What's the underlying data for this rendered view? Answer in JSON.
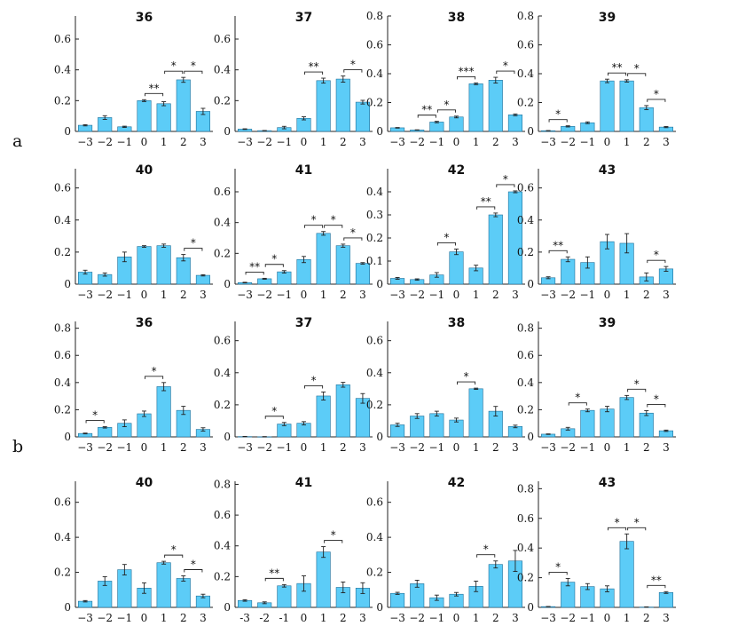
{
  "row_labels": [
    "a",
    "b"
  ],
  "chart_data": [
    {
      "type": "bar",
      "title": "36",
      "categories": [
        "−3",
        "−2",
        "−1",
        "0",
        "1",
        "2",
        "3"
      ],
      "ylim": [
        0,
        0.75
      ],
      "yticks": [
        0,
        0.2,
        0.4,
        0.6
      ],
      "ytick_labels": [
        "0",
        "0.2",
        "0.4",
        "0.6"
      ],
      "values": [
        0.04,
        0.09,
        0.03,
        0.2,
        0.18,
        0.335,
        0.13
      ],
      "errors": [
        0.004,
        0.012,
        0.004,
        0.006,
        0.013,
        0.016,
        0.02
      ],
      "significance": [
        {
          "from": 3,
          "to": 4,
          "label": "**"
        },
        {
          "from": 4,
          "to": 5,
          "label": "*"
        },
        {
          "from": 5,
          "to": 6,
          "label": "*"
        }
      ]
    },
    {
      "type": "bar",
      "title": "37",
      "categories": [
        "−3",
        "−2",
        "−1",
        "0",
        "1",
        "2",
        "3"
      ],
      "ylim": [
        0,
        0.75
      ],
      "yticks": [
        0,
        0.2,
        0.4,
        0.6
      ],
      "ytick_labels": [
        "0",
        "0.2",
        "0.4",
        "0.6"
      ],
      "values": [
        0.015,
        0.005,
        0.025,
        0.085,
        0.33,
        0.34,
        0.19
      ],
      "errors": [
        0.002,
        0.001,
        0.008,
        0.01,
        0.016,
        0.02,
        0.012
      ],
      "significance": [
        {
          "from": 3,
          "to": 4,
          "label": "**"
        },
        {
          "from": 5,
          "to": 6,
          "label": "*"
        }
      ]
    },
    {
      "type": "bar",
      "title": "38",
      "categories": [
        "−3",
        "−2",
        "−1",
        "0",
        "1",
        "2",
        "3"
      ],
      "ylim": [
        0,
        0.8
      ],
      "yticks": [
        0,
        0.2,
        0.4,
        0.6,
        0.8
      ],
      "ytick_labels": [
        "0",
        "0.2",
        "0.4",
        "0.6",
        "0.8"
      ],
      "values": [
        0.025,
        0.01,
        0.065,
        0.1,
        0.33,
        0.355,
        0.115
      ],
      "errors": [
        0.002,
        0.001,
        0.005,
        0.006,
        0.006,
        0.02,
        0.006
      ],
      "significance": [
        {
          "from": 1,
          "to": 2,
          "label": "**"
        },
        {
          "from": 2,
          "to": 3,
          "label": "*"
        },
        {
          "from": 3,
          "to": 4,
          "label": "***"
        },
        {
          "from": 5,
          "to": 6,
          "label": "*"
        }
      ]
    },
    {
      "type": "bar",
      "title": "39",
      "categories": [
        "−3",
        "−2",
        "−1",
        "0",
        "1",
        "2",
        "3"
      ],
      "ylim": [
        0,
        0.8
      ],
      "yticks": [
        0,
        0.2,
        0.4,
        0.6,
        0.8
      ],
      "ytick_labels": [
        "0",
        "0.2",
        "0.4",
        "0.6",
        "0.8"
      ],
      "values": [
        0.005,
        0.035,
        0.06,
        0.35,
        0.35,
        0.165,
        0.03
      ],
      "errors": [
        0.001,
        0.004,
        0.006,
        0.012,
        0.008,
        0.014,
        0.004
      ],
      "significance": [
        {
          "from": 0,
          "to": 1,
          "label": "*"
        },
        {
          "from": 3,
          "to": 4,
          "label": "**"
        },
        {
          "from": 4,
          "to": 5,
          "label": "*"
        },
        {
          "from": 5,
          "to": 6,
          "label": "*"
        }
      ]
    },
    {
      "type": "bar",
      "title": "40",
      "categories": [
        "−3",
        "−2",
        "−1",
        "0",
        "1",
        "2",
        "3"
      ],
      "ylim": [
        0,
        0.72
      ],
      "yticks": [
        0,
        0.2,
        0.4,
        0.6
      ],
      "ytick_labels": [
        "0",
        "0.2",
        "0.4",
        "0.6"
      ],
      "values": [
        0.075,
        0.06,
        0.17,
        0.235,
        0.24,
        0.165,
        0.055
      ],
      "errors": [
        0.012,
        0.01,
        0.03,
        0.005,
        0.01,
        0.02,
        0.004
      ],
      "significance": [
        {
          "from": 5,
          "to": 6,
          "label": "*"
        }
      ]
    },
    {
      "type": "bar",
      "title": "41",
      "categories": [
        "−3",
        "−2",
        "−1",
        "0",
        "1",
        "2",
        "3"
      ],
      "ylim": [
        0,
        0.75
      ],
      "yticks": [
        0,
        0.2,
        0.4,
        0.6
      ],
      "ytick_labels": [
        "0",
        "0.2",
        "0.4",
        "0.6"
      ],
      "values": [
        0.01,
        0.035,
        0.08,
        0.16,
        0.33,
        0.25,
        0.135
      ],
      "errors": [
        0.002,
        0.003,
        0.008,
        0.02,
        0.012,
        0.01,
        0.005
      ],
      "significance": [
        {
          "from": 0,
          "to": 1,
          "label": "**"
        },
        {
          "from": 1,
          "to": 2,
          "label": "*"
        },
        {
          "from": 3,
          "to": 4,
          "label": "*"
        },
        {
          "from": 4,
          "to": 5,
          "label": "*"
        },
        {
          "from": 5,
          "to": 6,
          "label": "*"
        }
      ]
    },
    {
      "type": "bar",
      "title": "42",
      "categories": [
        "−3",
        "−2",
        "−1",
        "0",
        "1",
        "2",
        "3"
      ],
      "ylim": [
        0,
        0.5
      ],
      "yticks": [
        0,
        0.1,
        0.2,
        0.3,
        0.4
      ],
      "ytick_labels": [
        "0",
        "0.1",
        "0.2",
        "0.3",
        "0.4"
      ],
      "values": [
        0.025,
        0.02,
        0.04,
        0.14,
        0.07,
        0.3,
        0.4
      ],
      "errors": [
        0.004,
        0.003,
        0.01,
        0.012,
        0.012,
        0.008,
        0.004
      ],
      "significance": [
        {
          "from": 2,
          "to": 3,
          "label": "*"
        },
        {
          "from": 4,
          "to": 5,
          "label": "**"
        },
        {
          "from": 5,
          "to": 6,
          "label": "*"
        }
      ]
    },
    {
      "type": "bar",
      "title": "43",
      "categories": [
        "−3",
        "−2",
        "−1",
        "0",
        "1",
        "2",
        "3"
      ],
      "ylim": [
        0,
        0.72
      ],
      "yticks": [
        0,
        0.2,
        0.4,
        0.6
      ],
      "ytick_labels": [
        "0",
        "0.2",
        "0.4",
        "0.6"
      ],
      "values": [
        0.04,
        0.155,
        0.135,
        0.265,
        0.255,
        0.045,
        0.095
      ],
      "errors": [
        0.006,
        0.015,
        0.035,
        0.045,
        0.06,
        0.025,
        0.015
      ],
      "significance": [
        {
          "from": 0,
          "to": 1,
          "label": "**"
        },
        {
          "from": 5,
          "to": 6,
          "label": "*"
        }
      ]
    },
    {
      "type": "bar",
      "title": "36",
      "categories": [
        "−3",
        "−2",
        "−1",
        "0",
        "1",
        "2",
        "3"
      ],
      "ylim": [
        0,
        0.85
      ],
      "yticks": [
        0,
        0.2,
        0.4,
        0.6,
        0.8
      ],
      "ytick_labels": [
        "0",
        "0.2",
        "0.4",
        "0.6",
        "0.8"
      ],
      "values": [
        0.025,
        0.07,
        0.1,
        0.17,
        0.37,
        0.195,
        0.055
      ],
      "errors": [
        0.003,
        0.005,
        0.025,
        0.02,
        0.03,
        0.03,
        0.012
      ],
      "significance": [
        {
          "from": 0,
          "to": 1,
          "label": "*"
        },
        {
          "from": 3,
          "to": 4,
          "label": "*"
        }
      ]
    },
    {
      "type": "bar",
      "title": "37",
      "categories": [
        "−3",
        "−2",
        "−1",
        "0",
        "1",
        "2",
        "3"
      ],
      "ylim": [
        0,
        0.72
      ],
      "yticks": [
        0,
        0.2,
        0.4,
        0.6
      ],
      "ytick_labels": [
        "0",
        "0.2",
        "0.4",
        "0.6"
      ],
      "values": [
        0.002,
        0.001,
        0.08,
        0.085,
        0.255,
        0.325,
        0.24
      ],
      "errors": [
        0.001,
        0.001,
        0.01,
        0.01,
        0.025,
        0.015,
        0.03
      ],
      "significance": [
        {
          "from": 1,
          "to": 2,
          "label": "*"
        },
        {
          "from": 3,
          "to": 4,
          "label": "*"
        }
      ]
    },
    {
      "type": "bar",
      "title": "38",
      "categories": [
        "−3",
        "−2",
        "−1",
        "0",
        "1",
        "2",
        "3"
      ],
      "ylim": [
        0,
        0.72
      ],
      "yticks": [
        0,
        0.2,
        0.4,
        0.6
      ],
      "ytick_labels": [
        "0",
        "0.2",
        "0.4",
        "0.6"
      ],
      "values": [
        0.075,
        0.13,
        0.145,
        0.105,
        0.3,
        0.16,
        0.065
      ],
      "errors": [
        0.01,
        0.015,
        0.015,
        0.012,
        0.004,
        0.03,
        0.008
      ],
      "significance": [
        {
          "from": 3,
          "to": 4,
          "label": "*"
        }
      ]
    },
    {
      "type": "bar",
      "title": "39",
      "categories": [
        "−3",
        "−2",
        "−1",
        "0",
        "1",
        "2",
        "3"
      ],
      "ylim": [
        0,
        0.85
      ],
      "yticks": [
        0,
        0.2,
        0.4,
        0.6,
        0.8
      ],
      "ytick_labels": [
        "0",
        "0.2",
        "0.4",
        "0.6",
        "0.8"
      ],
      "values": [
        0.02,
        0.06,
        0.195,
        0.205,
        0.29,
        0.175,
        0.045
      ],
      "errors": [
        0.002,
        0.01,
        0.01,
        0.02,
        0.015,
        0.018,
        0.005
      ],
      "significance": [
        {
          "from": 1,
          "to": 2,
          "label": "*"
        },
        {
          "from": 4,
          "to": 5,
          "label": "*"
        },
        {
          "from": 5,
          "to": 6,
          "label": "*"
        }
      ]
    },
    {
      "type": "bar",
      "title": "40",
      "categories": [
        "−3",
        "−2",
        "−1",
        "0",
        "1",
        "2",
        "3"
      ],
      "ylim": [
        0,
        0.72
      ],
      "yticks": [
        0,
        0.2,
        0.4,
        0.6
      ],
      "ytick_labels": [
        "0",
        "0.2",
        "0.4",
        "0.6"
      ],
      "values": [
        0.035,
        0.15,
        0.215,
        0.11,
        0.255,
        0.165,
        0.065
      ],
      "errors": [
        0.004,
        0.025,
        0.03,
        0.03,
        0.008,
        0.015,
        0.01
      ],
      "significance": [
        {
          "from": 4,
          "to": 5,
          "label": "*"
        },
        {
          "from": 5,
          "to": 6,
          "label": "*"
        }
      ]
    },
    {
      "type": "bar",
      "title": "41",
      "categories": [
        "-3",
        "-2",
        "-1",
        "0",
        "1",
        "2",
        "3"
      ],
      "ylim": [
        0,
        0.82
      ],
      "yticks": [
        0,
        0.2,
        0.4,
        0.6,
        0.8
      ],
      "ytick_labels": [
        "0",
        "0.2",
        "0.4",
        "0.6",
        "0.8"
      ],
      "values": [
        0.045,
        0.03,
        0.14,
        0.155,
        0.36,
        0.13,
        0.125
      ],
      "errors": [
        0.005,
        0.006,
        0.008,
        0.05,
        0.035,
        0.035,
        0.035
      ],
      "significance": [
        {
          "from": 1,
          "to": 2,
          "label": "**"
        },
        {
          "from": 4,
          "to": 5,
          "label": "*"
        }
      ]
    },
    {
      "type": "bar",
      "title": "42",
      "categories": [
        "−3",
        "−2",
        "−1",
        "0",
        "1",
        "2",
        "3"
      ],
      "ylim": [
        0,
        0.72
      ],
      "yticks": [
        0,
        0.2,
        0.4,
        0.6
      ],
      "ytick_labels": [
        "0",
        "0.2",
        "0.4",
        "0.6"
      ],
      "values": [
        0.08,
        0.135,
        0.055,
        0.075,
        0.12,
        0.245,
        0.265
      ],
      "errors": [
        0.006,
        0.02,
        0.015,
        0.01,
        0.03,
        0.02,
        0.06
      ],
      "significance": [
        {
          "from": 4,
          "to": 5,
          "label": "*"
        }
      ]
    },
    {
      "type": "bar",
      "title": "43",
      "categories": [
        "−3",
        "−2",
        "−1",
        "0",
        "1",
        "2",
        "3"
      ],
      "ylim": [
        0,
        0.85
      ],
      "yticks": [
        0,
        0.2,
        0.4,
        0.6,
        0.8
      ],
      "ytick_labels": [
        "0",
        "0.2",
        "0.4",
        "0.6",
        "0.8"
      ],
      "values": [
        0.005,
        0.17,
        0.14,
        0.125,
        0.445,
        0.002,
        0.1
      ],
      "errors": [
        0.001,
        0.025,
        0.02,
        0.02,
        0.05,
        0.001,
        0.006
      ],
      "significance": [
        {
          "from": 0,
          "to": 1,
          "label": "*"
        },
        {
          "from": 3,
          "to": 4,
          "label": "*"
        },
        {
          "from": 4,
          "to": 5,
          "label": "*"
        },
        {
          "from": 5,
          "to": 6,
          "label": "**"
        }
      ]
    }
  ]
}
